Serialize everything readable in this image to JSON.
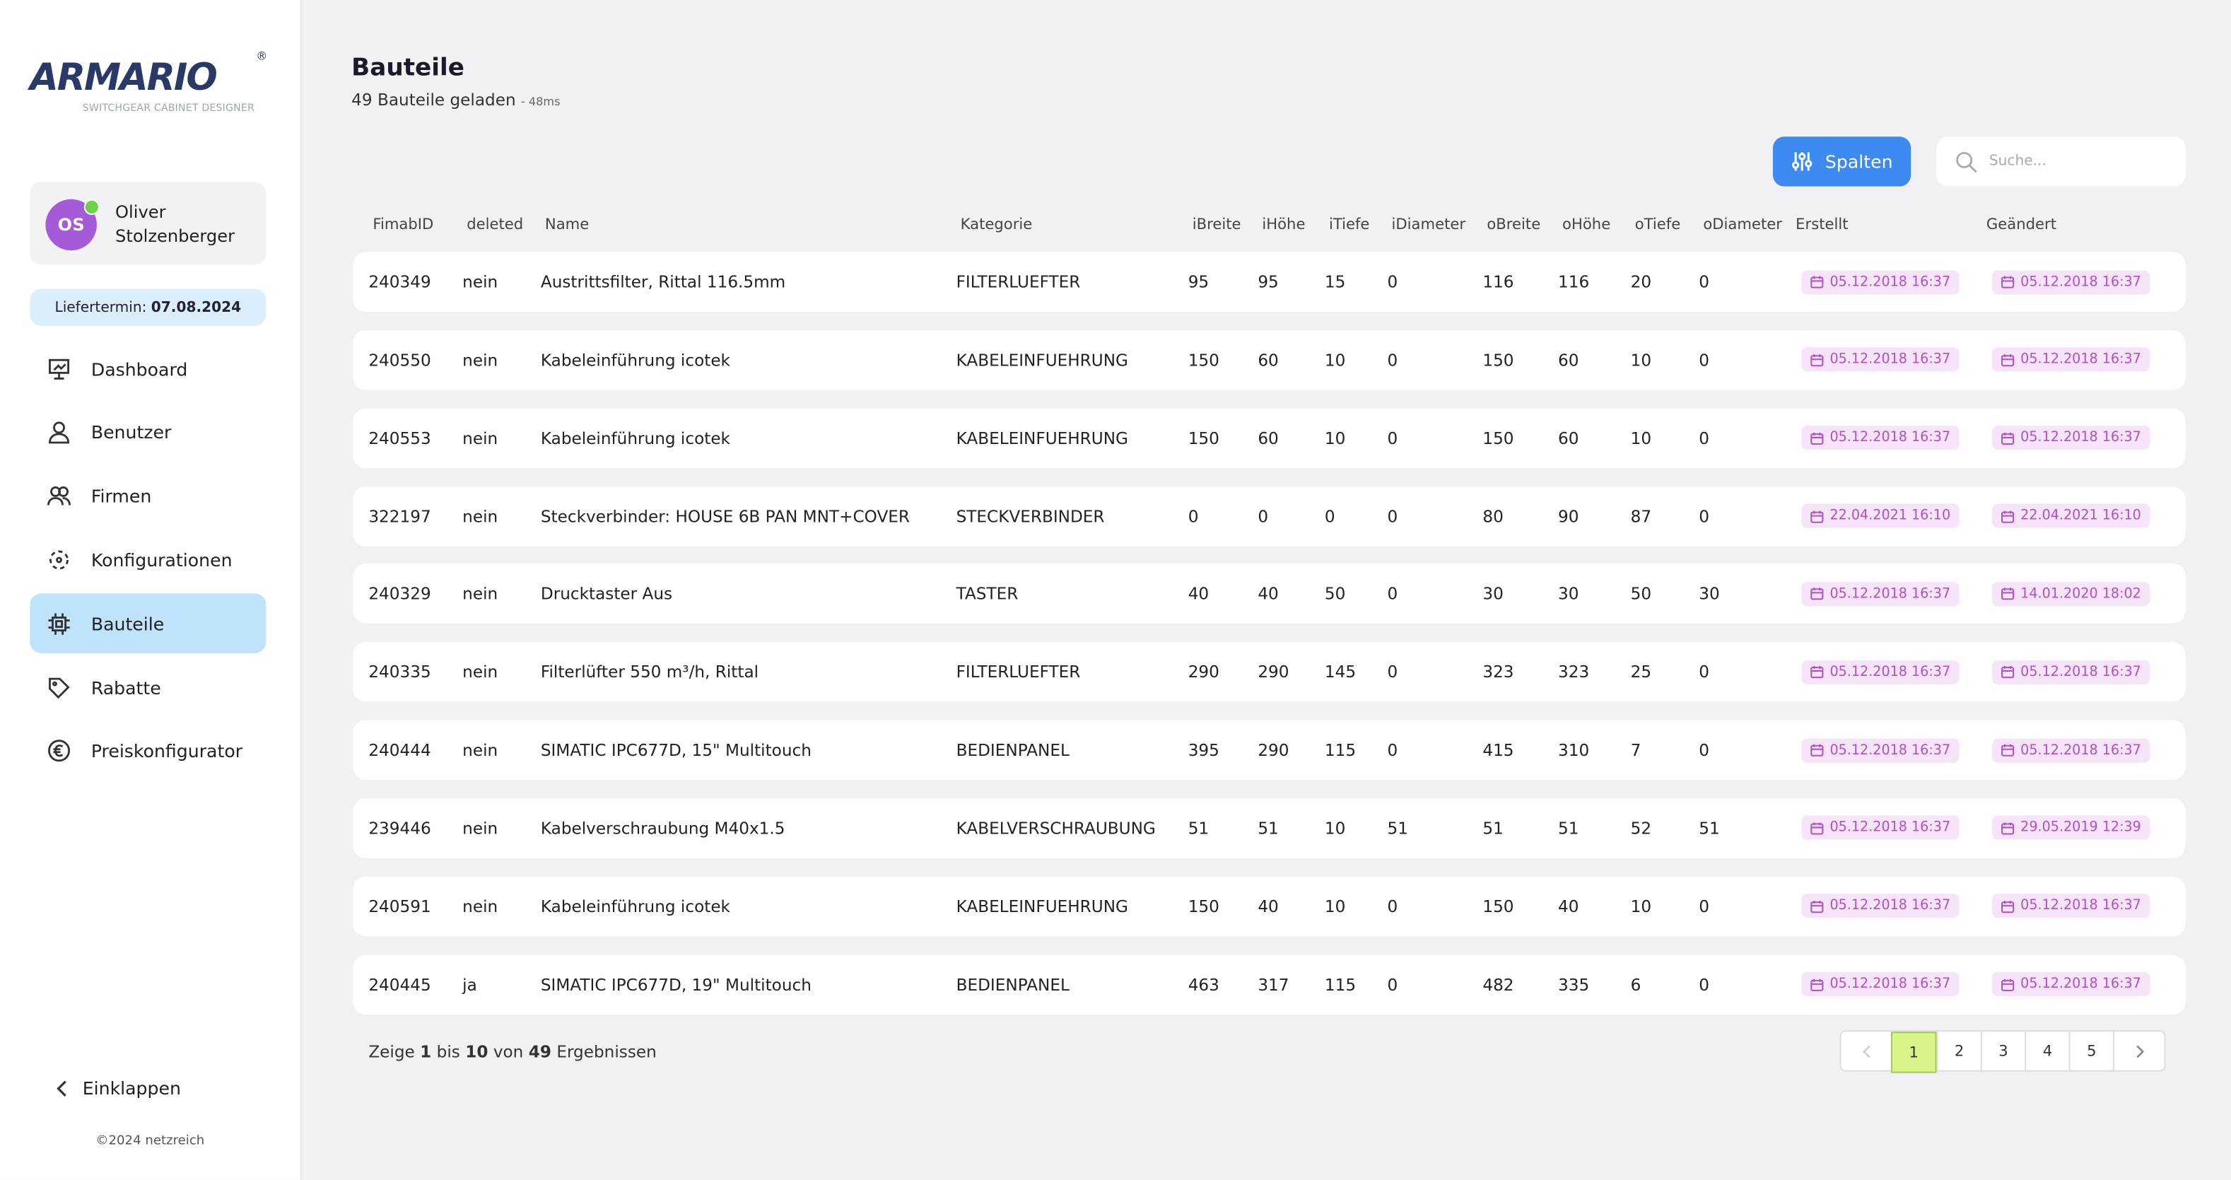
{
  "sidebar": {
    "logo": "ARMARIO",
    "logo_mark": "®",
    "logo_tagline": "SWITCHGEAR CABINET DESIGNER",
    "user": {
      "initials": "OS",
      "name": "Oliver Stolzenberger"
    },
    "delivery": {
      "label": "Liefertermin:",
      "date": "07.08.2024"
    },
    "nav": [
      "Dashboard",
      "Benutzer",
      "Firmen",
      "Konfigurationen",
      "Bauteile",
      "Rabatte",
      "Preiskonfigurator"
    ],
    "active": "Bauteile",
    "collapse": "Einklappen",
    "footer": "©2024 netzreich"
  },
  "header": {
    "title": "Bauteile",
    "subtitle": "49 Bauteile geladen",
    "timing": "- 48ms"
  },
  "toolbar": {
    "button": "Spalten",
    "search_placeholder": "Suche..."
  },
  "table": {
    "columns": [
      "FimabID",
      "deleted",
      "Name",
      "Kategorie",
      "iBreite",
      "iHöhe",
      "iTiefe",
      "iDiameter",
      "oBreite",
      "oHöhe",
      "oTiefe",
      "oDiameter",
      "Erstellt",
      "Geändert"
    ],
    "rows": [
      [
        "240349",
        "nein",
        "Austrittsfilter, Rittal 116.5mm",
        "FILTERLUEFTER",
        95,
        95,
        15,
        0,
        116,
        116,
        20,
        0,
        "05.12.2018 16:37",
        "05.12.2018 16:37"
      ],
      [
        "240550",
        "nein",
        "Kabeleinführung icotek",
        "KABELEINFUEHRUNG",
        150,
        60,
        10,
        0,
        150,
        60,
        10,
        0,
        "05.12.2018 16:37",
        "05.12.2018 16:37"
      ],
      [
        "240553",
        "nein",
        "Kabeleinführung icotek",
        "KABELEINFUEHRUNG",
        150,
        60,
        10,
        0,
        150,
        60,
        10,
        0,
        "05.12.2018 16:37",
        "05.12.2018 16:37"
      ],
      [
        "322197",
        "nein",
        "Steckverbinder: HOUSE 6B PAN MNT+COVER",
        "STECKVERBINDER",
        0,
        0,
        0,
        0,
        80,
        90,
        87,
        0,
        "22.04.2021 16:10",
        "22.04.2021 16:10"
      ],
      [
        "240329",
        "nein",
        "Drucktaster Aus",
        "TASTER",
        40,
        40,
        50,
        0,
        30,
        30,
        50,
        30,
        "05.12.2018 16:37",
        "14.01.2020 18:02"
      ],
      [
        "240335",
        "nein",
        "Filterlüfter 550 m³/h, Rittal",
        "FILTERLUEFTER",
        290,
        290,
        145,
        0,
        323,
        323,
        25,
        0,
        "05.12.2018 16:37",
        "05.12.2018 16:37"
      ],
      [
        "240444",
        "nein",
        "SIMATIC IPC677D, 15\" Multitouch",
        "BEDIENPANEL",
        395,
        290,
        115,
        0,
        415,
        310,
        7,
        0,
        "05.12.2018 16:37",
        "05.12.2018 16:37"
      ],
      [
        "239446",
        "nein",
        "Kabelverschraubung M40x1.5",
        "KABELVERSCHRAUBUNG",
        51,
        51,
        10,
        51,
        51,
        51,
        52,
        51,
        "05.12.2018 16:37",
        "29.05.2019 12:39"
      ],
      [
        "240591",
        "nein",
        "Kabeleinführung icotek",
        "KABELEINFUEHRUNG",
        150,
        40,
        10,
        0,
        150,
        40,
        10,
        0,
        "05.12.2018 16:37",
        "05.12.2018 16:37"
      ],
      [
        "240445",
        "ja",
        "SIMATIC IPC677D, 19\" Multitouch",
        "BEDIENPANEL",
        463,
        317,
        115,
        0,
        482,
        335,
        6,
        0,
        "05.12.2018 16:37",
        "05.12.2018 16:37"
      ]
    ]
  },
  "pagination": {
    "summary": [
      "Zeige",
      "1",
      "bis",
      "10",
      "von",
      "49",
      "Ergebnissen"
    ],
    "pages": [
      "1",
      "2",
      "3",
      "4",
      "5"
    ],
    "current": "1"
  }
}
